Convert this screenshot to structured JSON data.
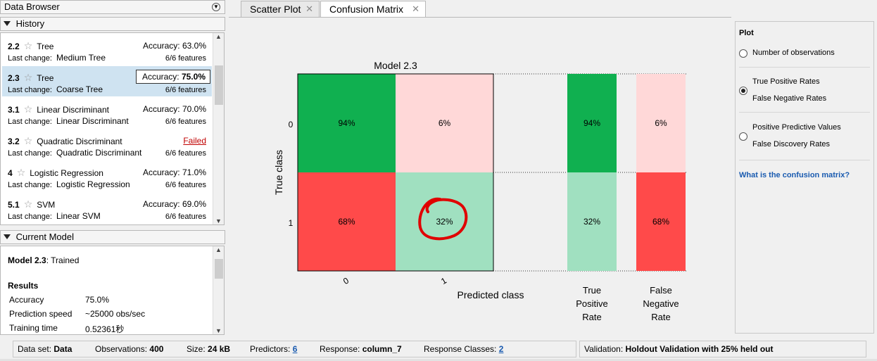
{
  "data_browser": {
    "title": "Data Browser",
    "history_label": "History",
    "current_model_label": "Current Model",
    "last_change_label": "Last change:",
    "accuracy_label": "Accuracy:",
    "history": [
      {
        "id": "2.2",
        "type": "Tree",
        "accuracy": "63.0%",
        "last_change": "Medium Tree",
        "features": "6/6 features",
        "selected": false,
        "failed": false
      },
      {
        "id": "2.3",
        "type": "Tree",
        "accuracy": "75.0%",
        "last_change": "Coarse Tree",
        "features": "6/6 features",
        "selected": true,
        "failed": false
      },
      {
        "id": "3.1",
        "type": "Linear Discriminant",
        "accuracy": "70.0%",
        "last_change": "Linear Discriminant",
        "features": "6/6 features",
        "selected": false,
        "failed": false
      },
      {
        "id": "3.2",
        "type": "Quadratic Discriminant",
        "accuracy": "Failed",
        "last_change": "Quadratic Discriminant",
        "features": "6/6 features",
        "selected": false,
        "failed": true
      },
      {
        "id": "4",
        "type": "Logistic Regression",
        "accuracy": "71.0%",
        "last_change": "Logistic Regression",
        "features": "6/6 features",
        "selected": false,
        "failed": false
      },
      {
        "id": "5.1",
        "type": "SVM",
        "accuracy": "69.0%",
        "last_change": "Linear SVM",
        "features": "6/6 features",
        "selected": false,
        "failed": false
      }
    ],
    "current_model": {
      "name": "Model 2.3",
      "status": ": Trained",
      "results_label": "Results",
      "rows": [
        {
          "label": "Accuracy",
          "value": "75.0%"
        },
        {
          "label": "Prediction speed",
          "value": "~25000 obs/sec"
        },
        {
          "label": "Training time",
          "value": "0.52361秒"
        }
      ]
    }
  },
  "tabs": [
    {
      "label": "Scatter Plot",
      "active": false
    },
    {
      "label": "Confusion Matrix",
      "active": true
    }
  ],
  "confusion_matrix": {
    "title": "Model 2.3",
    "ylabel": "True class",
    "xlabel": "Predicted class",
    "classes": [
      "0",
      "1"
    ],
    "cells": [
      [
        "94%",
        "6%"
      ],
      [
        "68%",
        "32%"
      ]
    ],
    "tpr_label": [
      "True",
      "Positive",
      "Rate"
    ],
    "fnr_label": [
      "False",
      "Negative",
      "Rate"
    ],
    "tpr": [
      "94%",
      "32%"
    ],
    "fnr": [
      "6%",
      "68%"
    ],
    "colors": {
      "good_strong": "#10b050",
      "good_light": "#a0e0c0",
      "bad_strong": "#ff4a4a",
      "bad_light": "#ffd8d8",
      "annotation": "#e00000"
    },
    "annotation": "red circle around 32% cell"
  },
  "plot_panel": {
    "title": "Plot",
    "options": [
      {
        "lines": [
          "Number of observations"
        ],
        "selected": false
      },
      {
        "lines": [
          "True Positive Rates",
          "False Negative Rates"
        ],
        "selected": true
      },
      {
        "lines": [
          "Positive Predictive Values",
          "False Discovery Rates"
        ],
        "selected": false
      }
    ],
    "help_link": "What is the confusion matrix?"
  },
  "status": {
    "dataset_label": "Data set:",
    "dataset": "Data",
    "obs_label": "Observations:",
    "obs": "400",
    "size_label": "Size:",
    "size": "24 kB",
    "pred_label": "Predictors:",
    "pred": "6",
    "resp_label": "Response:",
    "resp": "column_7",
    "classes_label": "Response Classes:",
    "classes": "2",
    "validation_label": "Validation:",
    "validation": "Holdout Validation with 25% held out"
  }
}
